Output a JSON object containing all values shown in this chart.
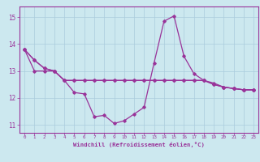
{
  "xlabel": "Windchill (Refroidissement éolien,°C)",
  "background_color": "#cce8ef",
  "grid_color": "#aaccdd",
  "line_color": "#993399",
  "hours": [
    0,
    1,
    2,
    3,
    4,
    5,
    6,
    7,
    8,
    9,
    10,
    11,
    12,
    13,
    14,
    15,
    16,
    17,
    18,
    19,
    20,
    21,
    22,
    23
  ],
  "series1": [
    13.8,
    13.4,
    13.1,
    13.0,
    12.65,
    12.2,
    12.15,
    11.3,
    11.35,
    11.05,
    11.15,
    11.4,
    11.65,
    13.3,
    14.85,
    15.05,
    13.55,
    12.9,
    12.65,
    12.55,
    12.4,
    12.35,
    12.3,
    12.3
  ],
  "series2": [
    13.8,
    13.4,
    13.1,
    13.0,
    12.65,
    12.65,
    12.65,
    12.65,
    12.65,
    12.65,
    12.65,
    12.65,
    12.65,
    12.65,
    12.65,
    12.65,
    12.65,
    12.65,
    12.65,
    12.5,
    12.4,
    12.35,
    12.3,
    12.3
  ],
  "series3": [
    13.8,
    13.0,
    13.0,
    13.0,
    12.65,
    12.65,
    12.65,
    12.65,
    12.65,
    12.65,
    12.65,
    12.65,
    12.65,
    12.65,
    12.65,
    12.65,
    12.65,
    12.65,
    12.65,
    12.5,
    12.4,
    12.35,
    12.3,
    12.3
  ],
  "ylim": [
    10.7,
    15.4
  ],
  "yticks": [
    11,
    12,
    13,
    14,
    15
  ],
  "xlim": [
    -0.5,
    23.5
  ],
  "figsize": [
    3.2,
    2.0
  ],
  "dpi": 100
}
